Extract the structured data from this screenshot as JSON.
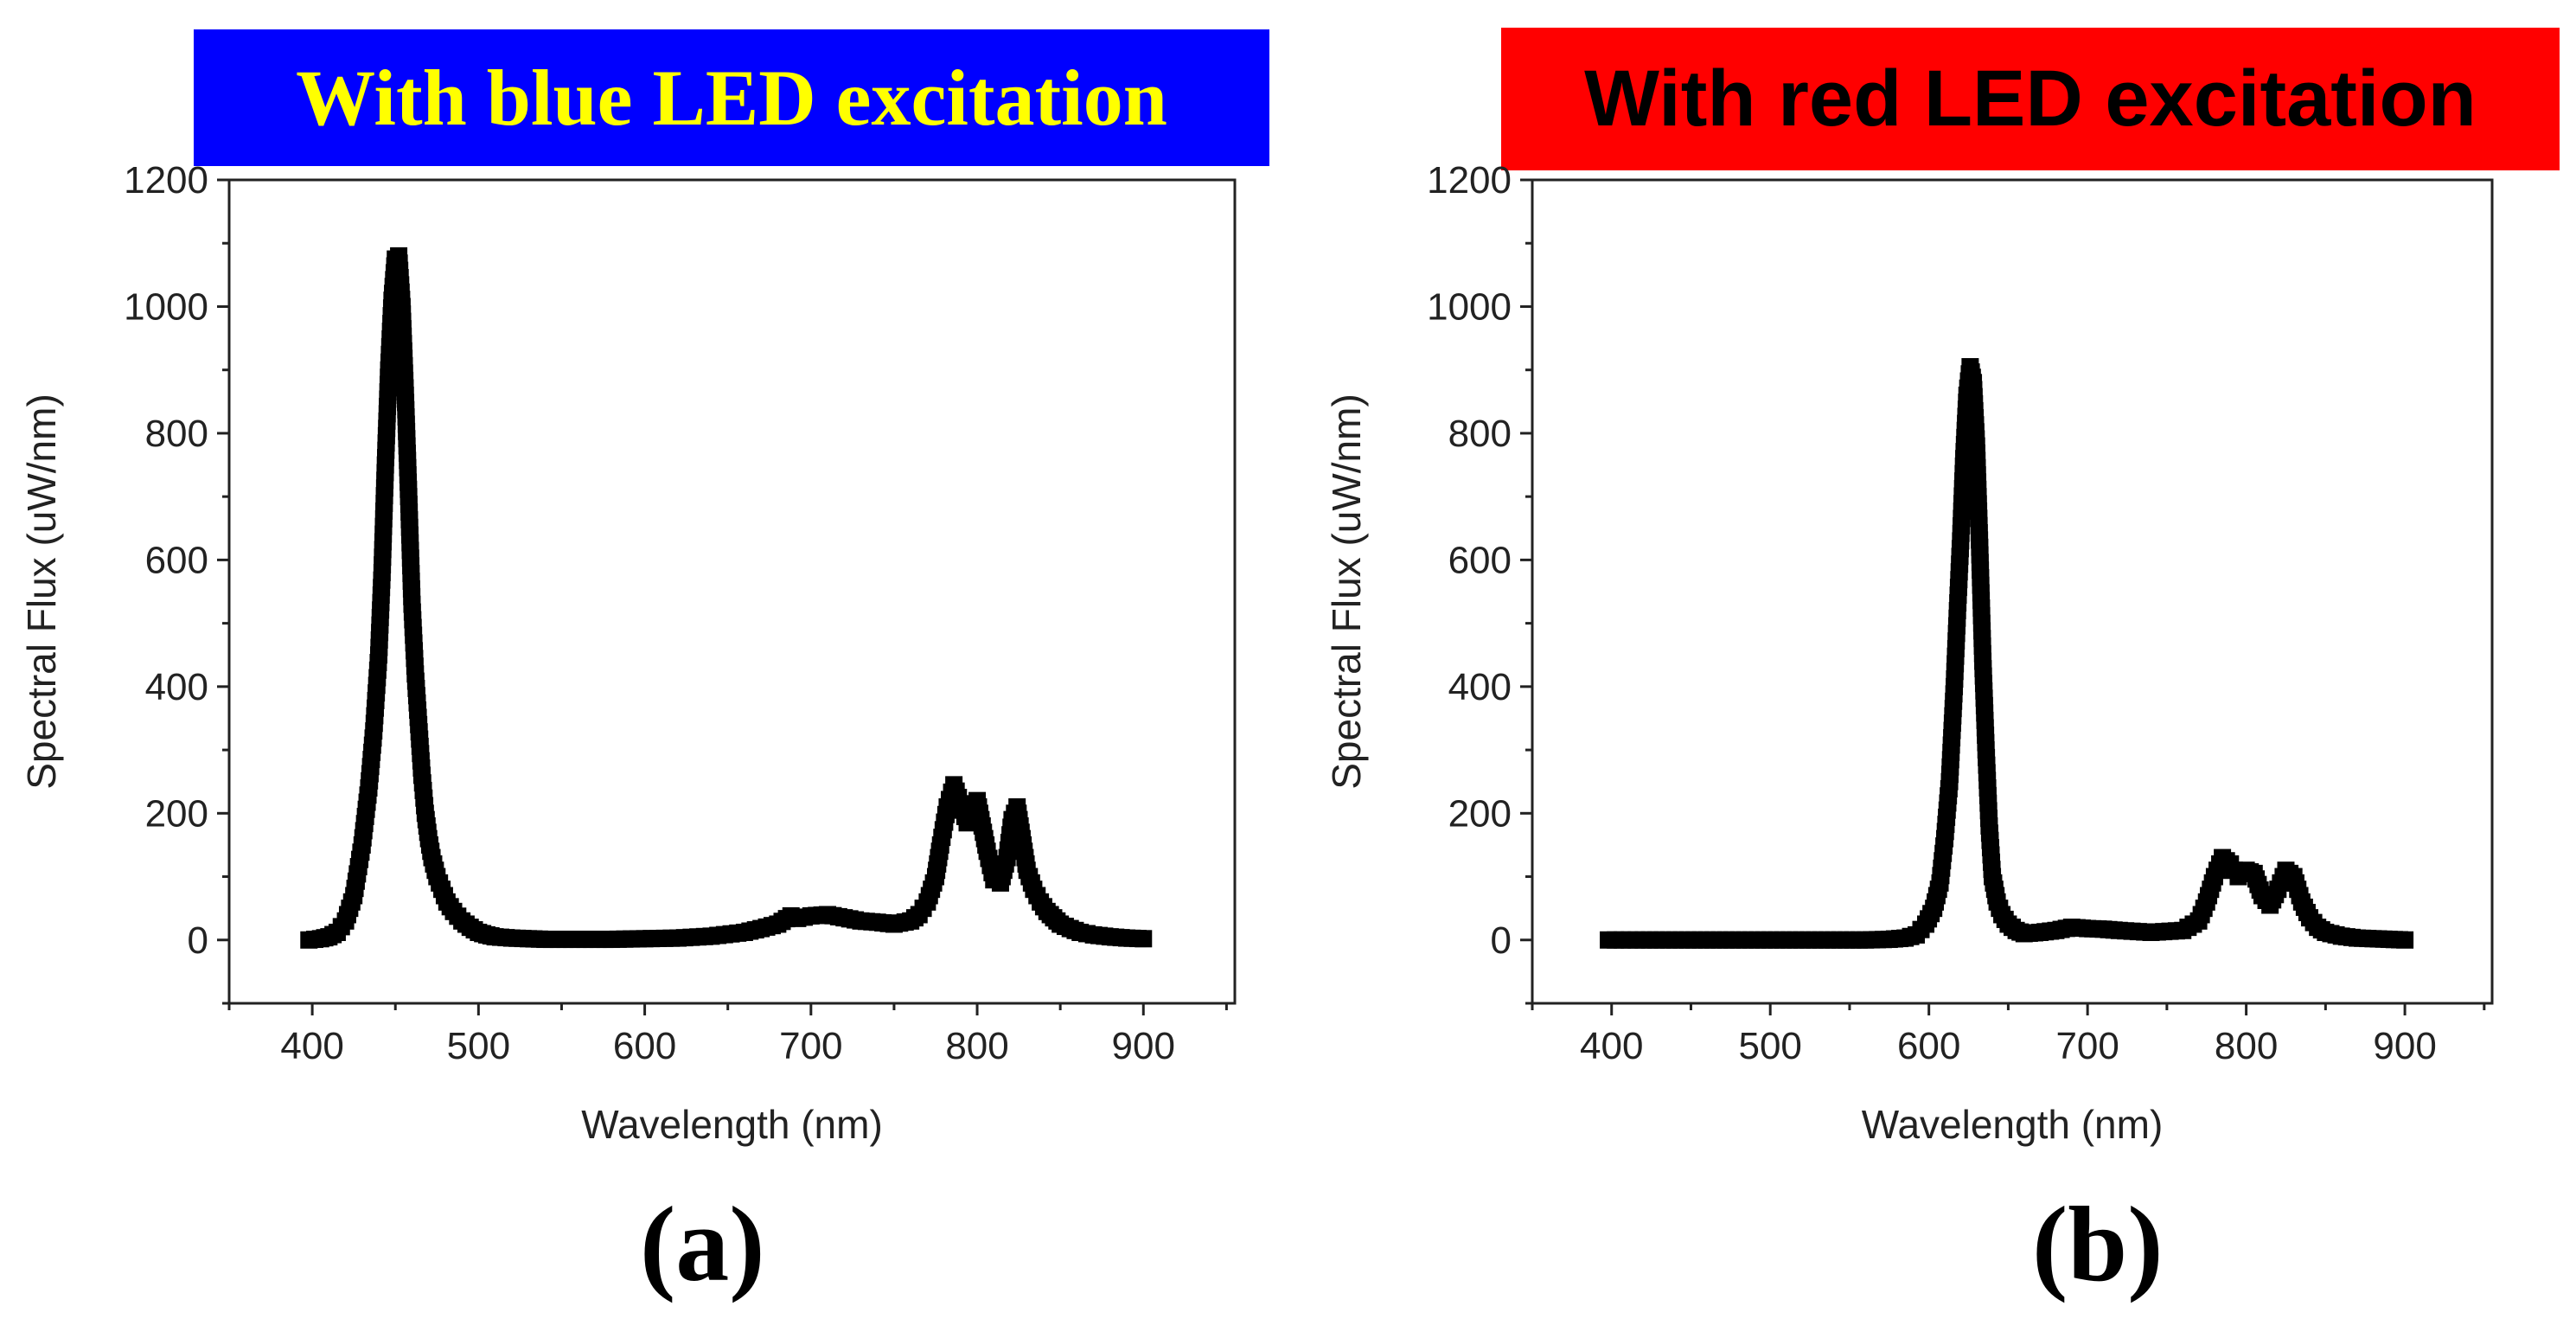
{
  "colors": {
    "banner_a_bg": "#0000ff",
    "banner_a_text": "#ffff00",
    "banner_b_bg": "#ff0000",
    "banner_b_text": "#000000",
    "marker": "#000000"
  },
  "panels": {
    "a": {
      "title": "With blue LED excitation",
      "label": "(a)"
    },
    "b": {
      "title": "With red LED excitation",
      "label": "(b)"
    }
  },
  "chart_data": [
    {
      "type": "scatter",
      "title": "With blue LED excitation",
      "xlabel": "Wavelength (nm)",
      "ylabel": "Spectral Flux (uW/nm)",
      "xlim": [
        350,
        955
      ],
      "ylim": [
        -100,
        1200
      ],
      "xticks": [
        400,
        500,
        600,
        700,
        800,
        900
      ],
      "yticks": [
        0,
        200,
        400,
        600,
        800,
        1000,
        1200
      ],
      "series": [
        {
          "name": "blue LED excitation",
          "x": [
            398,
            405,
            410,
            415,
            420,
            425,
            430,
            434,
            437,
            440,
            442,
            444,
            446,
            448,
            450,
            452,
            454,
            456,
            458,
            460,
            462,
            464,
            466,
            468,
            470,
            472,
            475,
            478,
            481,
            485,
            490,
            495,
            500,
            505,
            510,
            520,
            530,
            540,
            560,
            580,
            600,
            620,
            640,
            660,
            670,
            680,
            688,
            692,
            700,
            710,
            720,
            730,
            740,
            750,
            760,
            765,
            770,
            775,
            778,
            782,
            786,
            790,
            794,
            797,
            800,
            803,
            806,
            810,
            814,
            818,
            821,
            824,
            827,
            830,
            834,
            838,
            842,
            846,
            850,
            856,
            862,
            870,
            880,
            890,
            900
          ],
          "y": [
            0,
            2,
            5,
            12,
            30,
            70,
            150,
            240,
            330,
            450,
            580,
            750,
            900,
            1010,
            1075,
            1080,
            1000,
            860,
            700,
            530,
            420,
            340,
            260,
            200,
            160,
            130,
            100,
            80,
            60,
            45,
            30,
            20,
            12,
            8,
            5,
            3,
            2,
            1,
            1,
            1,
            2,
            3,
            6,
            12,
            18,
            25,
            38,
            34,
            38,
            40,
            35,
            30,
            28,
            25,
            30,
            40,
            60,
            100,
            150,
            210,
            245,
            215,
            185,
            200,
            220,
            180,
            140,
            95,
            90,
            130,
            190,
            210,
            160,
            110,
            80,
            60,
            45,
            35,
            25,
            18,
            12,
            8,
            5,
            3,
            2
          ]
        }
      ]
    },
    {
      "type": "scatter",
      "title": "With red LED excitation",
      "xlabel": "Wavelength (nm)",
      "ylabel": "Spectral Flux (uW/nm)",
      "xlim": [
        350,
        955
      ],
      "ylim": [
        -100,
        1200
      ],
      "xticks": [
        400,
        500,
        600,
        700,
        800,
        900
      ],
      "yticks": [
        0,
        200,
        400,
        600,
        800,
        1000,
        1200
      ],
      "series": [
        {
          "name": "red LED excitation",
          "x": [
            398,
            420,
            440,
            460,
            480,
            500,
            520,
            540,
            560,
            575,
            585,
            592,
            598,
            603,
            607,
            610,
            613,
            616,
            618,
            620,
            622,
            624,
            626,
            628,
            630,
            632,
            634,
            636,
            638,
            640,
            643,
            646,
            650,
            655,
            660,
            670,
            680,
            690,
            700,
            710,
            720,
            740,
            760,
            770,
            775,
            780,
            785,
            790,
            795,
            800,
            805,
            810,
            815,
            820,
            825,
            830,
            835,
            840,
            845,
            850,
            860,
            870,
            880,
            890,
            900
          ],
          "y": [
            0,
            0,
            0,
            0,
            0,
            0,
            0,
            0,
            0,
            1,
            3,
            8,
            25,
            50,
            90,
            160,
            250,
            400,
            520,
            630,
            760,
            860,
            905,
            880,
            780,
            620,
            440,
            300,
            180,
            100,
            60,
            40,
            25,
            15,
            10,
            12,
            15,
            20,
            18,
            17,
            15,
            12,
            15,
            30,
            60,
            100,
            130,
            120,
            100,
            110,
            105,
            70,
            55,
            80,
            110,
            100,
            60,
            35,
            20,
            12,
            6,
            3,
            2,
            1,
            0
          ]
        }
      ]
    }
  ]
}
